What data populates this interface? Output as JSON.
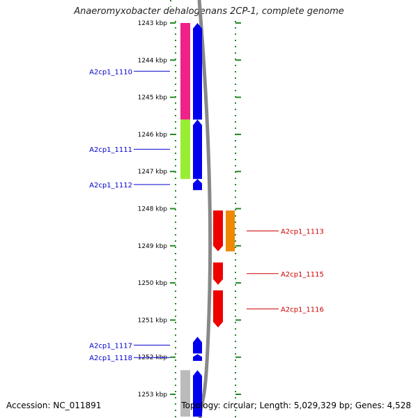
{
  "header": {
    "title": "Anaeromyxobacter dehalogenans 2CP-1, complete genome"
  },
  "footer": {
    "accession": "Accession: NC_011891",
    "topology": "Topology: circular; Length: 5,029,329 bp; Genes: 4,528"
  },
  "colors": {
    "ruler": "#228822",
    "left_label": "#0000cc",
    "right_label": "#cc0000",
    "backbone": "#888888"
  },
  "ruler": {
    "ticks": [
      {
        "kbp": 1243,
        "label": "1243 kbp"
      },
      {
        "kbp": 1244,
        "label": "1244 kbp"
      },
      {
        "kbp": 1245,
        "label": "1245 kbp"
      },
      {
        "kbp": 1246,
        "label": "1246 kbp"
      },
      {
        "kbp": 1247,
        "label": "1247 kbp"
      },
      {
        "kbp": 1248,
        "label": "1248 kbp"
      },
      {
        "kbp": 1249,
        "label": "1249 kbp"
      },
      {
        "kbp": 1250,
        "label": "1250 kbp"
      },
      {
        "kbp": 1251,
        "label": "1251 kbp"
      },
      {
        "kbp": 1252,
        "label": "1252 kbp"
      },
      {
        "kbp": 1253,
        "label": "1253 kbp"
      }
    ]
  },
  "genes_left": [
    {
      "label": "A2cp1_1110",
      "start_kbp": 1243.0,
      "end_kbp": 1245.6,
      "strand": "+",
      "color": "#0000ee",
      "strand_color": "#ee2288",
      "cog_color": "#ee2288"
    },
    {
      "label": "A2cp1_1111",
      "start_kbp": 1245.6,
      "end_kbp": 1247.2,
      "strand": "+",
      "color": "#0000ee",
      "cog_color": "#99ee33"
    },
    {
      "label": "A2cp1_1112",
      "start_kbp": 1247.2,
      "end_kbp": 1247.5,
      "strand": "+",
      "color": "#0000ee",
      "cog_color": null
    },
    {
      "label": "A2cp1_1117",
      "start_kbp": 1251.45,
      "end_kbp": 1251.9,
      "strand": "+",
      "color": "#0000ee",
      "cog_color": null
    },
    {
      "label": "A2cp1_1118",
      "start_kbp": 1251.92,
      "end_kbp": 1252.1,
      "strand": "+",
      "color": "#0000ee",
      "cog_color": null
    },
    {
      "label": "",
      "start_kbp": 1252.35,
      "end_kbp": 1253.6,
      "strand": "+",
      "color": "#0000ee",
      "cog_color": "#bbbbbb"
    }
  ],
  "genes_right": [
    {
      "label": "A2cp1_1113",
      "start_kbp": 1248.05,
      "end_kbp": 1249.15,
      "strand": "-",
      "color": "#ee0000",
      "cog_color": "#ee8800"
    },
    {
      "label": "A2cp1_1115",
      "start_kbp": 1249.45,
      "end_kbp": 1250.05,
      "strand": "-",
      "color": "#ee0000",
      "cog_color": null
    },
    {
      "label": "A2cp1_1116",
      "start_kbp": 1250.2,
      "end_kbp": 1251.2,
      "strand": "-",
      "color": "#ee0000",
      "cog_color": null
    }
  ]
}
